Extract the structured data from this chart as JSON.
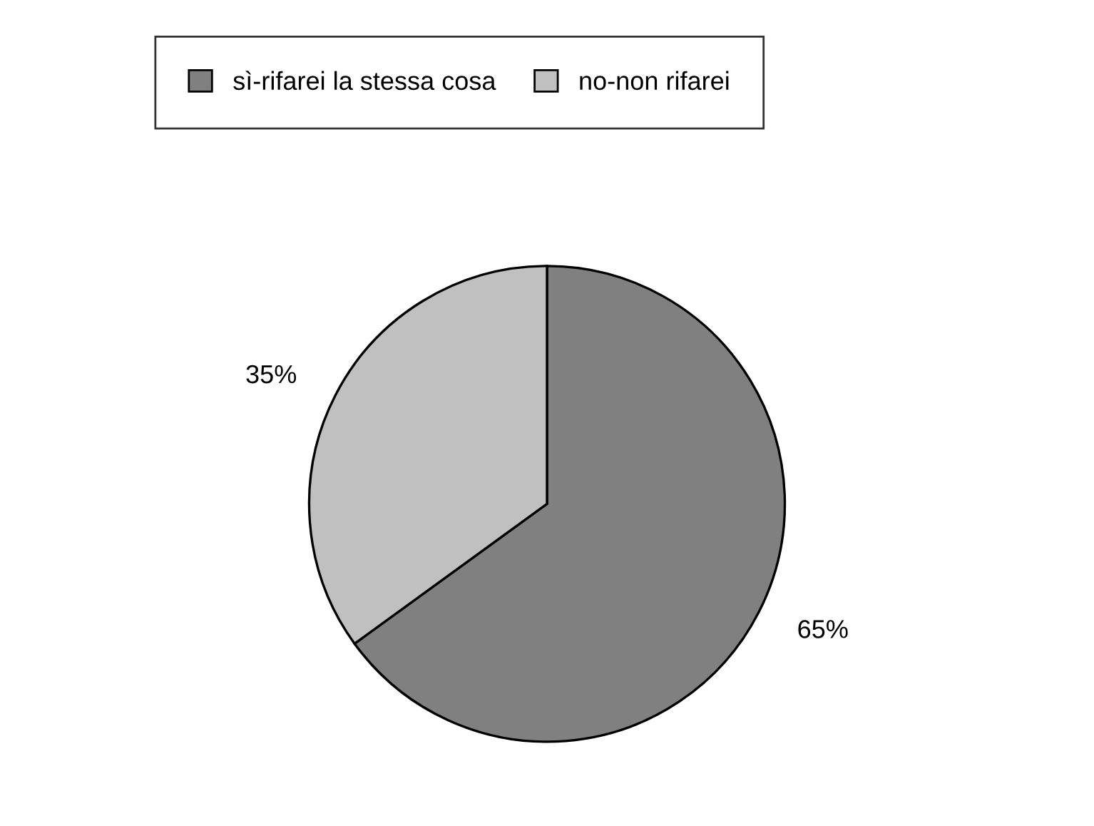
{
  "chart_data": {
    "type": "pie",
    "categories": [
      "sì-rifarei la stessa cosa",
      "no-non rifarei"
    ],
    "values": [
      65,
      35
    ],
    "colors": [
      "#808080",
      "#c0c0c0"
    ],
    "value_labels": [
      "65%",
      "35%"
    ],
    "legend": "top"
  }
}
